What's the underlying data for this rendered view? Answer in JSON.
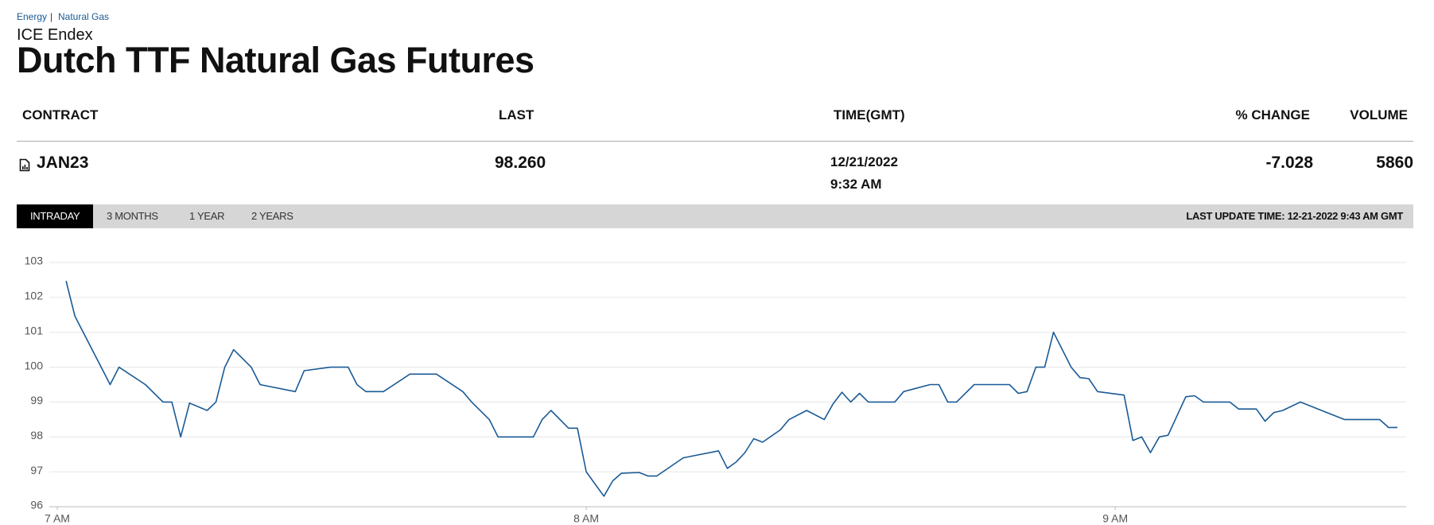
{
  "breadcrumb": [
    "Energy",
    "Natural Gas"
  ],
  "breadcrumb_separator": "|",
  "exchange": "ICE Endex",
  "title": "Dutch TTF Natural Gas Futures",
  "table": {
    "columns": [
      "CONTRACT",
      "LAST",
      "TIME(GMT)",
      "% CHANGE",
      "VOLUME"
    ],
    "rows": [
      {
        "contract": "JAN23",
        "last": "98.260",
        "date": "12/21/2022",
        "time": "9:32 AM",
        "change": "-7.028",
        "volume": "5860"
      }
    ]
  },
  "tabs": [
    "INTRADAY",
    "3 MONTHS",
    "1 YEAR",
    "2 YEARS"
  ],
  "last_update": "LAST UPDATE TIME: 12-21-2022 9:43 AM GMT",
  "chart_data": {
    "type": "line",
    "color": "#1a5a96",
    "grid": true,
    "x": [
      421,
      422,
      426,
      427,
      430,
      432,
      433,
      434,
      435,
      437,
      438,
      439,
      440,
      442,
      443,
      447,
      448,
      451,
      453,
      454,
      455,
      457,
      460,
      463,
      466,
      467,
      469,
      470,
      474,
      475,
      476,
      478,
      479,
      480,
      482,
      483,
      484,
      486,
      487,
      488,
      491,
      492,
      495,
      496,
      497,
      498,
      499,
      500,
      502,
      503,
      505,
      507,
      508,
      509,
      510,
      511,
      512,
      513,
      515,
      516,
      519,
      520,
      521,
      522,
      524,
      528,
      529,
      530,
      531,
      532,
      533,
      535,
      536,
      537,
      538,
      541,
      542,
      543,
      544,
      545,
      546,
      548,
      549,
      550,
      553,
      554,
      556,
      557,
      558,
      559,
      561,
      563,
      566,
      570,
      571,
      572
    ],
    "values": [
      102.47,
      101.46,
      99.5,
      100.0,
      99.5,
      99.0,
      99.0,
      98.0,
      98.97,
      98.76,
      99.0,
      100.0,
      100.5,
      100.0,
      99.5,
      99.3,
      99.9,
      100.0,
      100.0,
      99.5,
      99.3,
      99.3,
      99.8,
      99.8,
      99.3,
      99.0,
      98.5,
      98.0,
      98.0,
      98.5,
      98.76,
      98.25,
      98.25,
      97.0,
      96.3,
      96.74,
      96.96,
      96.98,
      96.88,
      96.88,
      97.4,
      97.45,
      97.6,
      97.1,
      97.28,
      97.55,
      97.95,
      97.85,
      98.2,
      98.5,
      98.76,
      98.5,
      98.95,
      99.28,
      99.0,
      99.25,
      99.0,
      99.0,
      99.0,
      99.3,
      99.5,
      99.5,
      99.0,
      99.0,
      99.5,
      99.5,
      99.25,
      99.3,
      100.0,
      100.0,
      101.0,
      100.0,
      99.7,
      99.67,
      99.3,
      99.2,
      97.9,
      98.0,
      97.55,
      98.0,
      98.05,
      99.15,
      99.18,
      99.0,
      99.0,
      98.8,
      98.8,
      98.45,
      98.7,
      98.76,
      99.0,
      98.8,
      98.5,
      98.5,
      98.27,
      98.27
    ],
    "xlim": [
      420,
      573
    ],
    "xticks": [
      {
        "value": 420,
        "label": "7 AM"
      },
      {
        "value": 480,
        "label": "8 AM"
      },
      {
        "value": 540,
        "label": "9 AM"
      }
    ],
    "ylim": [
      96,
      103
    ],
    "yticks": [
      96,
      97,
      98,
      99,
      100,
      101,
      102,
      103
    ]
  }
}
